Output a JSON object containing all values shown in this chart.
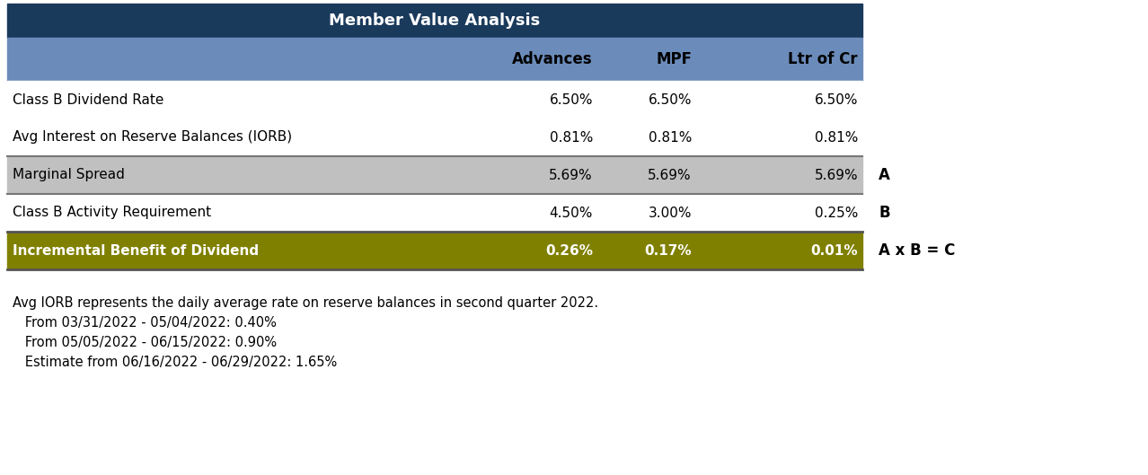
{
  "title": "Member Value Analysis",
  "title_bg": "#1a3a5c",
  "header_bg": "#6b8cba",
  "col_headers": [
    "",
    "Advances",
    "MPF",
    "Ltr of Cr"
  ],
  "rows": [
    {
      "label": "Class B Dividend Rate",
      "values": [
        "6.50%",
        "6.50%",
        "6.50%"
      ],
      "bg": "#ffffff",
      "bold": false,
      "side_label": ""
    },
    {
      "label": "Avg Interest on Reserve Balances (IORB)",
      "values": [
        "0.81%",
        "0.81%",
        "0.81%"
      ],
      "bg": "#ffffff",
      "bold": false,
      "side_label": ""
    },
    {
      "label": "Marginal Spread",
      "values": [
        "5.69%",
        "5.69%",
        "5.69%"
      ],
      "bg": "#c0c0c0",
      "bold": false,
      "side_label": "A"
    },
    {
      "label": "Class B Activity Requirement",
      "values": [
        "4.50%",
        "3.00%",
        "0.25%"
      ],
      "bg": "#ffffff",
      "bold": false,
      "side_label": "B"
    },
    {
      "label": "Incremental Benefit of Dividend",
      "values": [
        "0.26%",
        "0.17%",
        "0.01%"
      ],
      "bg": "#808000",
      "bold": true,
      "side_label": "A x B = C"
    }
  ],
  "notes": [
    "Avg IORB represents the daily average rate on reserve balances in second quarter 2022.",
    "   From 03/31/2022 - 05/04/2022: 0.40%",
    "   From 05/05/2022 - 06/15/2022: 0.90%",
    "   Estimate from 06/16/2022 - 06/29/2022: 1.65%"
  ],
  "figsize": [
    12.78,
    5.29
  ],
  "dpi": 100
}
